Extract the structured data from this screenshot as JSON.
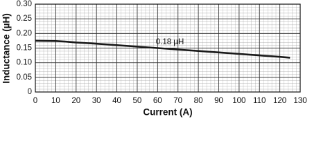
{
  "chart_data": {
    "type": "line",
    "x_label": "Current (A)",
    "y_label": "Inductance (µH)",
    "annotations": [
      "0.18 µH"
    ],
    "x": [
      0,
      10,
      15,
      20,
      30,
      40,
      50,
      60,
      70,
      80,
      90,
      100,
      110,
      120,
      125
    ],
    "series": [
      {
        "color": "#1a1a1a",
        "values": [
          0.175,
          0.174,
          0.172,
          0.169,
          0.165,
          0.16,
          0.155,
          0.15,
          0.145,
          0.14,
          0.135,
          0.13,
          0.125,
          0.12,
          0.117
        ]
      }
    ],
    "xlim": [
      0,
      130
    ],
    "xticks": [
      0,
      10,
      20,
      30,
      40,
      50,
      60,
      70,
      80,
      90,
      100,
      110,
      120,
      130
    ],
    "ylim": [
      0,
      0.3
    ],
    "yticks": [
      0,
      0.05,
      {
        "value": 0.1,
        "label": "0.10"
      },
      0.15,
      {
        "value": 0.2,
        "label": "0.20"
      },
      0.25,
      {
        "value": 0.3,
        "label": "0.30"
      }
    ],
    "grid": true
  }
}
